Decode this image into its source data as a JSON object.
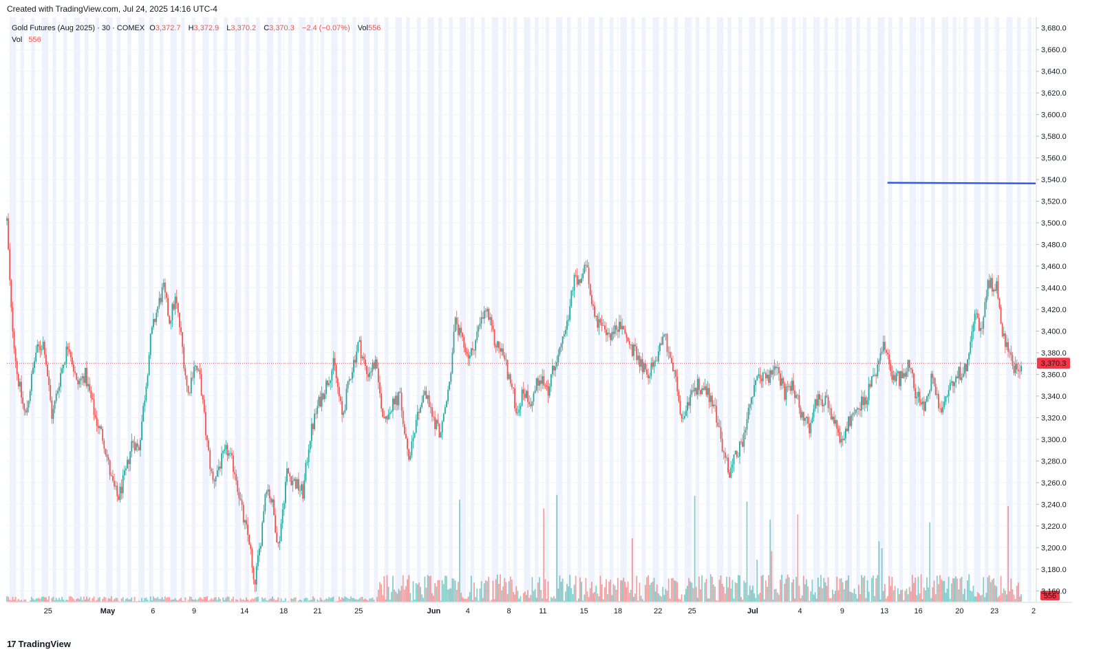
{
  "header": {
    "created": "Created with TradingView.com, Jul 24, 2025 14:16 UTC-4"
  },
  "legend": {
    "symbol": "Gold Futures (Aug 2025) · 30 · COMEX",
    "o_label": "O",
    "o_value": "3,372.7",
    "h_label": "H",
    "h_value": "3,372.9",
    "l_label": "L",
    "l_value": "3,370.2",
    "c_label": "C",
    "c_value": "3,370.3",
    "change": "−2.4 (−0.07%)",
    "vol_label": "Vol",
    "vol_value": "556",
    "vol_row_label": "Vol",
    "vol_row_value": "556"
  },
  "footer": {
    "brand": "TradingView",
    "logo_glyph": "17"
  },
  "colors": {
    "up": "#26a69a",
    "down": "#ef5350",
    "session_band": "#eef2fd",
    "hline": "#2e5be8",
    "last_price": "#f23645"
  },
  "chart_data": {
    "type": "candlestick",
    "yaxis": {
      "range": [
        3150,
        3690
      ],
      "ticks": [
        "3,680.0",
        "3,660.0",
        "3,640.0",
        "3,620.0",
        "3,600.0",
        "3,580.0",
        "3,560.0",
        "3,540.0",
        "3,520.0",
        "3,500.0",
        "3,480.0",
        "3,460.0",
        "3,440.0",
        "3,420.0",
        "3,400.0",
        "3,380.0",
        "3,360.0",
        "3,340.0",
        "3,320.0",
        "3,300.0",
        "3,280.0",
        "3,260.0",
        "3,240.0",
        "3,220.0",
        "3,200.0",
        "3,180.0",
        "3,160.0"
      ]
    },
    "xaxis": {
      "labels": [
        {
          "text": "25",
          "pos": 0.04,
          "bold": false
        },
        {
          "text": "May",
          "pos": 0.098,
          "bold": true
        },
        {
          "text": "6",
          "pos": 0.142,
          "bold": false
        },
        {
          "text": "9",
          "pos": 0.182,
          "bold": false
        },
        {
          "text": "14",
          "pos": 0.231,
          "bold": false
        },
        {
          "text": "18",
          "pos": 0.269,
          "bold": false
        },
        {
          "text": "21",
          "pos": 0.302,
          "bold": false
        },
        {
          "text": "25",
          "pos": 0.342,
          "bold": false
        },
        {
          "text": "Jun",
          "pos": 0.415,
          "bold": true
        },
        {
          "text": "4",
          "pos": 0.448,
          "bold": false
        },
        {
          "text": "8",
          "pos": 0.488,
          "bold": false
        },
        {
          "text": "11",
          "pos": 0.521,
          "bold": false
        },
        {
          "text": "15",
          "pos": 0.561,
          "bold": false
        },
        {
          "text": "18",
          "pos": 0.594,
          "bold": false
        },
        {
          "text": "22",
          "pos": 0.633,
          "bold": false
        },
        {
          "text": "25",
          "pos": 0.666,
          "bold": false
        },
        {
          "text": "Jul",
          "pos": 0.725,
          "bold": true
        },
        {
          "text": "4",
          "pos": 0.771,
          "bold": false
        },
        {
          "text": "9",
          "pos": 0.812,
          "bold": false
        },
        {
          "text": "13",
          "pos": 0.853,
          "bold": false
        },
        {
          "text": "16",
          "pos": 0.886,
          "bold": false
        },
        {
          "text": "20",
          "pos": 0.926,
          "bold": false
        },
        {
          "text": "23",
          "pos": 0.96,
          "bold": false
        },
        {
          "text": "2",
          "pos": 0.998,
          "bold": false
        }
      ]
    },
    "price_path": [
      [
        0.0,
        3502
      ],
      [
        0.004,
        3420
      ],
      [
        0.01,
        3360
      ],
      [
        0.018,
        3320
      ],
      [
        0.028,
        3380
      ],
      [
        0.036,
        3390
      ],
      [
        0.044,
        3320
      ],
      [
        0.052,
        3360
      ],
      [
        0.06,
        3390
      ],
      [
        0.068,
        3350
      ],
      [
        0.076,
        3360
      ],
      [
        0.086,
        3320
      ],
      [
        0.094,
        3300
      ],
      [
        0.102,
        3260
      ],
      [
        0.108,
        3245
      ],
      [
        0.116,
        3270
      ],
      [
        0.122,
        3300
      ],
      [
        0.128,
        3290
      ],
      [
        0.134,
        3340
      ],
      [
        0.14,
        3395
      ],
      [
        0.146,
        3420
      ],
      [
        0.152,
        3440
      ],
      [
        0.158,
        3410
      ],
      [
        0.164,
        3430
      ],
      [
        0.17,
        3390
      ],
      [
        0.176,
        3340
      ],
      [
        0.182,
        3370
      ],
      [
        0.188,
        3355
      ],
      [
        0.194,
        3300
      ],
      [
        0.2,
        3260
      ],
      [
        0.206,
        3275
      ],
      [
        0.214,
        3290
      ],
      [
        0.222,
        3270
      ],
      [
        0.23,
        3225
      ],
      [
        0.236,
        3205
      ],
      [
        0.24,
        3162
      ],
      [
        0.246,
        3200
      ],
      [
        0.252,
        3260
      ],
      [
        0.258,
        3240
      ],
      [
        0.264,
        3200
      ],
      [
        0.272,
        3270
      ],
      [
        0.28,
        3260
      ],
      [
        0.288,
        3250
      ],
      [
        0.294,
        3300
      ],
      [
        0.302,
        3330
      ],
      [
        0.31,
        3350
      ],
      [
        0.318,
        3370
      ],
      [
        0.326,
        3320
      ],
      [
        0.334,
        3360
      ],
      [
        0.342,
        3390
      ],
      [
        0.35,
        3360
      ],
      [
        0.358,
        3370
      ],
      [
        0.366,
        3320
      ],
      [
        0.374,
        3330
      ],
      [
        0.382,
        3340
      ],
      [
        0.39,
        3280
      ],
      [
        0.398,
        3320
      ],
      [
        0.406,
        3345
      ],
      [
        0.414,
        3320
      ],
      [
        0.422,
        3305
      ],
      [
        0.43,
        3350
      ],
      [
        0.436,
        3410
      ],
      [
        0.442,
        3390
      ],
      [
        0.45,
        3375
      ],
      [
        0.458,
        3400
      ],
      [
        0.466,
        3420
      ],
      [
        0.474,
        3390
      ],
      [
        0.482,
        3380
      ],
      [
        0.49,
        3350
      ],
      [
        0.496,
        3325
      ],
      [
        0.502,
        3345
      ],
      [
        0.51,
        3335
      ],
      [
        0.518,
        3360
      ],
      [
        0.526,
        3345
      ],
      [
        0.534,
        3375
      ],
      [
        0.54,
        3400
      ],
      [
        0.546,
        3415
      ],
      [
        0.552,
        3450
      ],
      [
        0.558,
        3440
      ],
      [
        0.562,
        3465
      ],
      [
        0.568,
        3430
      ],
      [
        0.574,
        3410
      ],
      [
        0.582,
        3395
      ],
      [
        0.59,
        3400
      ],
      [
        0.598,
        3405
      ],
      [
        0.606,
        3385
      ],
      [
        0.614,
        3375
      ],
      [
        0.622,
        3360
      ],
      [
        0.63,
        3370
      ],
      [
        0.638,
        3400
      ],
      [
        0.644,
        3380
      ],
      [
        0.65,
        3355
      ],
      [
        0.656,
        3315
      ],
      [
        0.664,
        3340
      ],
      [
        0.672,
        3350
      ],
      [
        0.68,
        3345
      ],
      [
        0.688,
        3330
      ],
      [
        0.696,
        3290
      ],
      [
        0.702,
        3270
      ],
      [
        0.708,
        3285
      ],
      [
        0.716,
        3300
      ],
      [
        0.724,
        3340
      ],
      [
        0.732,
        3360
      ],
      [
        0.74,
        3355
      ],
      [
        0.748,
        3370
      ],
      [
        0.756,
        3340
      ],
      [
        0.764,
        3350
      ],
      [
        0.772,
        3325
      ],
      [
        0.78,
        3310
      ],
      [
        0.788,
        3340
      ],
      [
        0.796,
        3335
      ],
      [
        0.804,
        3315
      ],
      [
        0.812,
        3295
      ],
      [
        0.82,
        3320
      ],
      [
        0.828,
        3330
      ],
      [
        0.836,
        3340
      ],
      [
        0.844,
        3360
      ],
      [
        0.852,
        3385
      ],
      [
        0.86,
        3360
      ],
      [
        0.868,
        3355
      ],
      [
        0.876,
        3370
      ],
      [
        0.884,
        3340
      ],
      [
        0.892,
        3330
      ],
      [
        0.9,
        3360
      ],
      [
        0.908,
        3325
      ],
      [
        0.916,
        3350
      ],
      [
        0.924,
        3360
      ],
      [
        0.932,
        3365
      ],
      [
        0.94,
        3415
      ],
      [
        0.948,
        3400
      ],
      [
        0.954,
        3445
      ],
      [
        0.962,
        3440
      ],
      [
        0.968,
        3400
      ],
      [
        0.974,
        3380
      ],
      [
        0.98,
        3365
      ],
      [
        0.986,
        3370
      ]
    ],
    "horizontal_line": {
      "price": 3537,
      "from": 0.856,
      "to": 1.0
    },
    "last_price": {
      "value": 3370.3,
      "label": "3,370.3"
    }
  }
}
